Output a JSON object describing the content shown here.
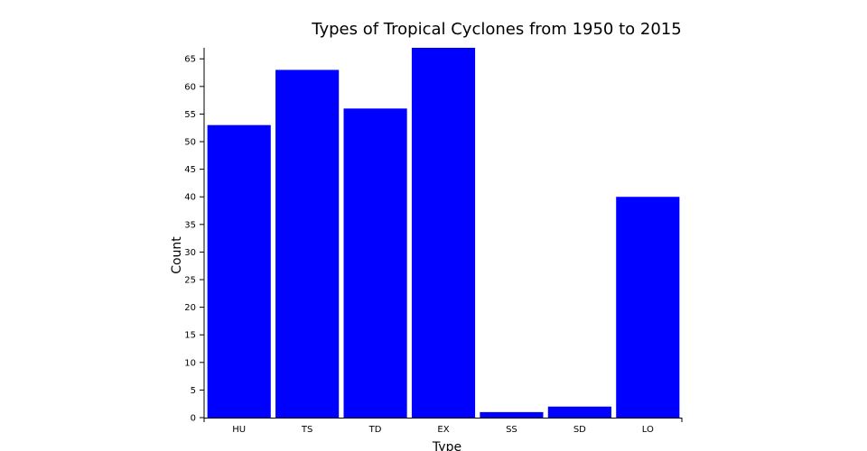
{
  "chart_data": {
    "type": "bar",
    "title": "Types of Tropical Cyclones from 1950 to 2015",
    "xlabel": "Type",
    "ylabel": "Count",
    "categories": [
      "HU",
      "TS",
      "TD",
      "EX",
      "SS",
      "SD",
      "LO"
    ],
    "values": [
      53,
      63,
      56,
      67,
      1,
      2,
      40
    ],
    "ylim": [
      0,
      67
    ],
    "yticks": [
      0,
      5,
      10,
      15,
      20,
      25,
      30,
      35,
      40,
      45,
      50,
      55,
      60,
      65
    ],
    "grid": false,
    "bar_color": "#0000ff"
  }
}
